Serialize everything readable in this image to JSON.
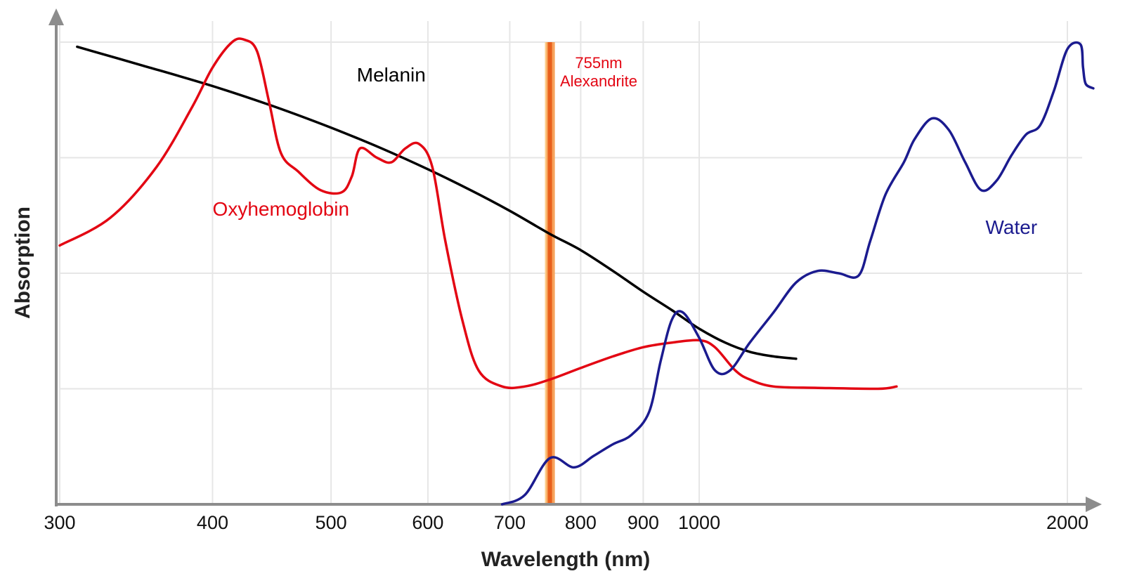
{
  "chart_data": {
    "type": "line",
    "title": "",
    "xlabel": "Wavelength (nm)",
    "ylabel": "Absorption",
    "x_scale": "log",
    "xlim": [
      300,
      2070
    ],
    "ylim": [
      0,
      100
    ],
    "grid": true,
    "legend": "none",
    "x_ticks": [
      300,
      400,
      500,
      600,
      700,
      800,
      900,
      1000,
      2000
    ],
    "x_tick_labels": [
      "300",
      "400",
      "500",
      "600",
      "700",
      "800",
      "900",
      "1000",
      "2000"
    ],
    "y_gridlines": [
      25,
      50,
      75,
      100
    ],
    "series": [
      {
        "name": "Melanin",
        "color": "#000000",
        "points": [
          [
            310,
            99
          ],
          [
            350,
            95
          ],
          [
            400,
            90.5
          ],
          [
            450,
            86
          ],
          [
            500,
            81.5
          ],
          [
            550,
            77
          ],
          [
            600,
            72.5
          ],
          [
            650,
            68
          ],
          [
            700,
            63.5
          ],
          [
            755,
            58.5
          ],
          [
            800,
            55
          ],
          [
            850,
            50.5
          ],
          [
            900,
            46
          ],
          [
            950,
            42
          ],
          [
            1000,
            38
          ],
          [
            1050,
            35
          ],
          [
            1100,
            33
          ],
          [
            1150,
            32
          ],
          [
            1200,
            31.5
          ]
        ]
      },
      {
        "name": "Oxyhemoglobin",
        "color": "#e30613",
        "points": [
          [
            300,
            56
          ],
          [
            330,
            62
          ],
          [
            360,
            73
          ],
          [
            385,
            86
          ],
          [
            400,
            94.5
          ],
          [
            415,
            100
          ],
          [
            425,
            100.5
          ],
          [
            435,
            98
          ],
          [
            445,
            87
          ],
          [
            455,
            76
          ],
          [
            470,
            72
          ],
          [
            490,
            68
          ],
          [
            510,
            67.5
          ],
          [
            520,
            71
          ],
          [
            528,
            77
          ],
          [
            545,
            75
          ],
          [
            560,
            74
          ],
          [
            575,
            77
          ],
          [
            590,
            78
          ],
          [
            605,
            73
          ],
          [
            620,
            57
          ],
          [
            640,
            40
          ],
          [
            660,
            29
          ],
          [
            690,
            25.5
          ],
          [
            720,
            25.5
          ],
          [
            755,
            27
          ],
          [
            800,
            29.5
          ],
          [
            850,
            32
          ],
          [
            900,
            34
          ],
          [
            950,
            35
          ],
          [
            1000,
            35.5
          ],
          [
            1030,
            34
          ],
          [
            1070,
            29
          ],
          [
            1100,
            27
          ],
          [
            1150,
            25.5
          ],
          [
            1250,
            25.2
          ],
          [
            1400,
            25
          ],
          [
            1450,
            25.5
          ]
        ]
      },
      {
        "name": "Water",
        "color": "#1b1b8f",
        "points": [
          [
            690,
            0
          ],
          [
            720,
            2
          ],
          [
            755,
            10
          ],
          [
            790,
            8
          ],
          [
            820,
            10.5
          ],
          [
            850,
            13
          ],
          [
            880,
            15
          ],
          [
            910,
            20
          ],
          [
            930,
            31
          ],
          [
            950,
            40
          ],
          [
            970,
            41.5
          ],
          [
            1000,
            36
          ],
          [
            1030,
            29
          ],
          [
            1060,
            29
          ],
          [
            1100,
            35
          ],
          [
            1150,
            41.5
          ],
          [
            1200,
            48
          ],
          [
            1250,
            50.5
          ],
          [
            1300,
            50
          ],
          [
            1350,
            49.5
          ],
          [
            1380,
            57
          ],
          [
            1420,
            67
          ],
          [
            1470,
            74
          ],
          [
            1500,
            79
          ],
          [
            1550,
            83.5
          ],
          [
            1600,
            81
          ],
          [
            1650,
            74
          ],
          [
            1700,
            68
          ],
          [
            1750,
            70
          ],
          [
            1800,
            75.5
          ],
          [
            1850,
            80
          ],
          [
            1900,
            82
          ],
          [
            1950,
            89.5
          ],
          [
            2000,
            98.5
          ],
          [
            2050,
            99.5
          ],
          [
            2060,
            94.5
          ],
          [
            2070,
            91
          ],
          [
            2100,
            90
          ]
        ]
      }
    ],
    "series_labels": [
      {
        "text": "Melanin",
        "color": "#000000",
        "x": 560,
        "y": 91.5
      },
      {
        "text": "Oxyhemoglobin",
        "color": "#e30613",
        "x": 455,
        "y": 62.5
      },
      {
        "text": "Water",
        "color": "#1b1b8f",
        "x": 1800,
        "y": 58.5
      }
    ],
    "highlight_band": {
      "wavelength": 755,
      "label_lines": [
        "755nm",
        "Alexandrite"
      ],
      "label_color": "#e30613",
      "fill_colors": [
        "#f7a35c",
        "#e8601c",
        "#fbd08a"
      ]
    },
    "axis_color": "#8c8c8c",
    "grid_color": "#e6e6e6"
  }
}
